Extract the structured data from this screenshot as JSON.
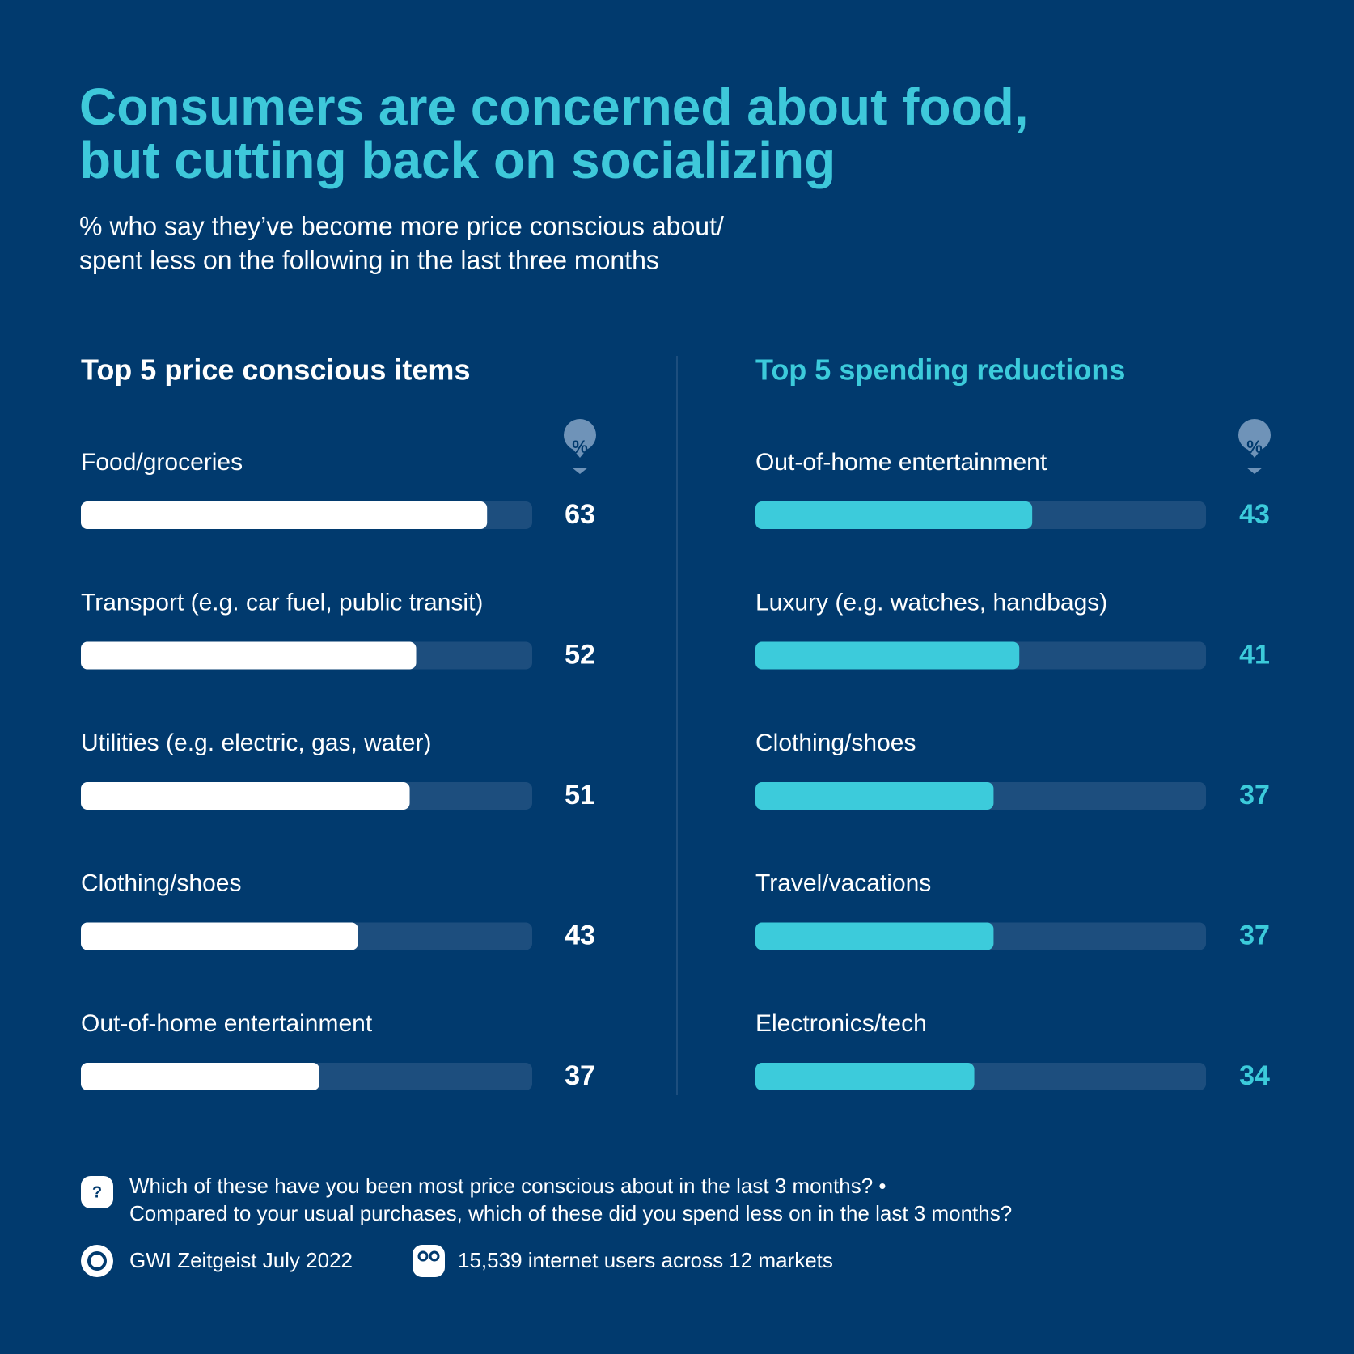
{
  "header": {
    "title_lines": [
      "Consumers are concerned about food,",
      "but cutting back on socializing"
    ],
    "subtitle_lines": [
      "% who say they’ve become more price conscious about/",
      "spent less on the following in the last three months"
    ]
  },
  "chart_data": [
    {
      "type": "bar",
      "orientation": "horizontal",
      "title": "Top 5 price conscious items",
      "unit_label": "%",
      "color": "#ffffff",
      "categories": [
        "Food/groceries",
        "Transport (e.g. car fuel, public transit)",
        "Utilities (e.g. electric, gas, water)",
        "Clothing/shoes",
        "Out-of-home entertainment"
      ],
      "values": [
        63,
        52,
        51,
        43,
        37
      ],
      "xlim": [
        0,
        70
      ]
    },
    {
      "type": "bar",
      "orientation": "horizontal",
      "title": "Top 5 spending reductions",
      "unit_label": "%",
      "color": "#3ccbdb",
      "categories": [
        "Out-of-home entertainment",
        "Luxury (e.g. watches, handbags)",
        "Clothing/shoes",
        "Travel/vacations",
        "Electronics/tech"
      ],
      "values": [
        43,
        41,
        37,
        37,
        34
      ],
      "xlim": [
        0,
        70
      ]
    }
  ],
  "footer": {
    "question_icon": "?",
    "question_lines": [
      "Which of these have you been most price conscious about in the last 3 months? •",
      "Compared to your usual purchases, which of these did you spend less on in the last 3 months?"
    ],
    "source": "GWI Zeitgeist July 2022",
    "sample": "15,539 internet users across 12 markets"
  }
}
